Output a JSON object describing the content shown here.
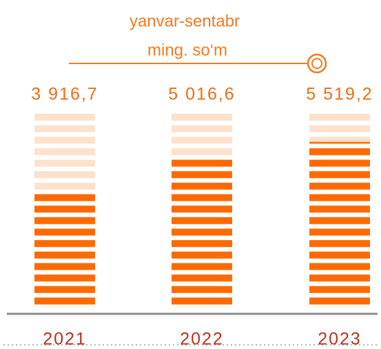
{
  "chart_data": {
    "type": "bar",
    "title": "yanvar-sentabr",
    "subtitle": "ming. so‘m",
    "categories": [
      "2021",
      "2022",
      "2023"
    ],
    "values": [
      3916.7,
      5016.6,
      5519.2
    ],
    "value_labels": [
      "3 916,7",
      "5 016,6",
      "5 519,2"
    ],
    "color": "#ff6a00",
    "ylim": [
      0,
      6500
    ]
  }
}
